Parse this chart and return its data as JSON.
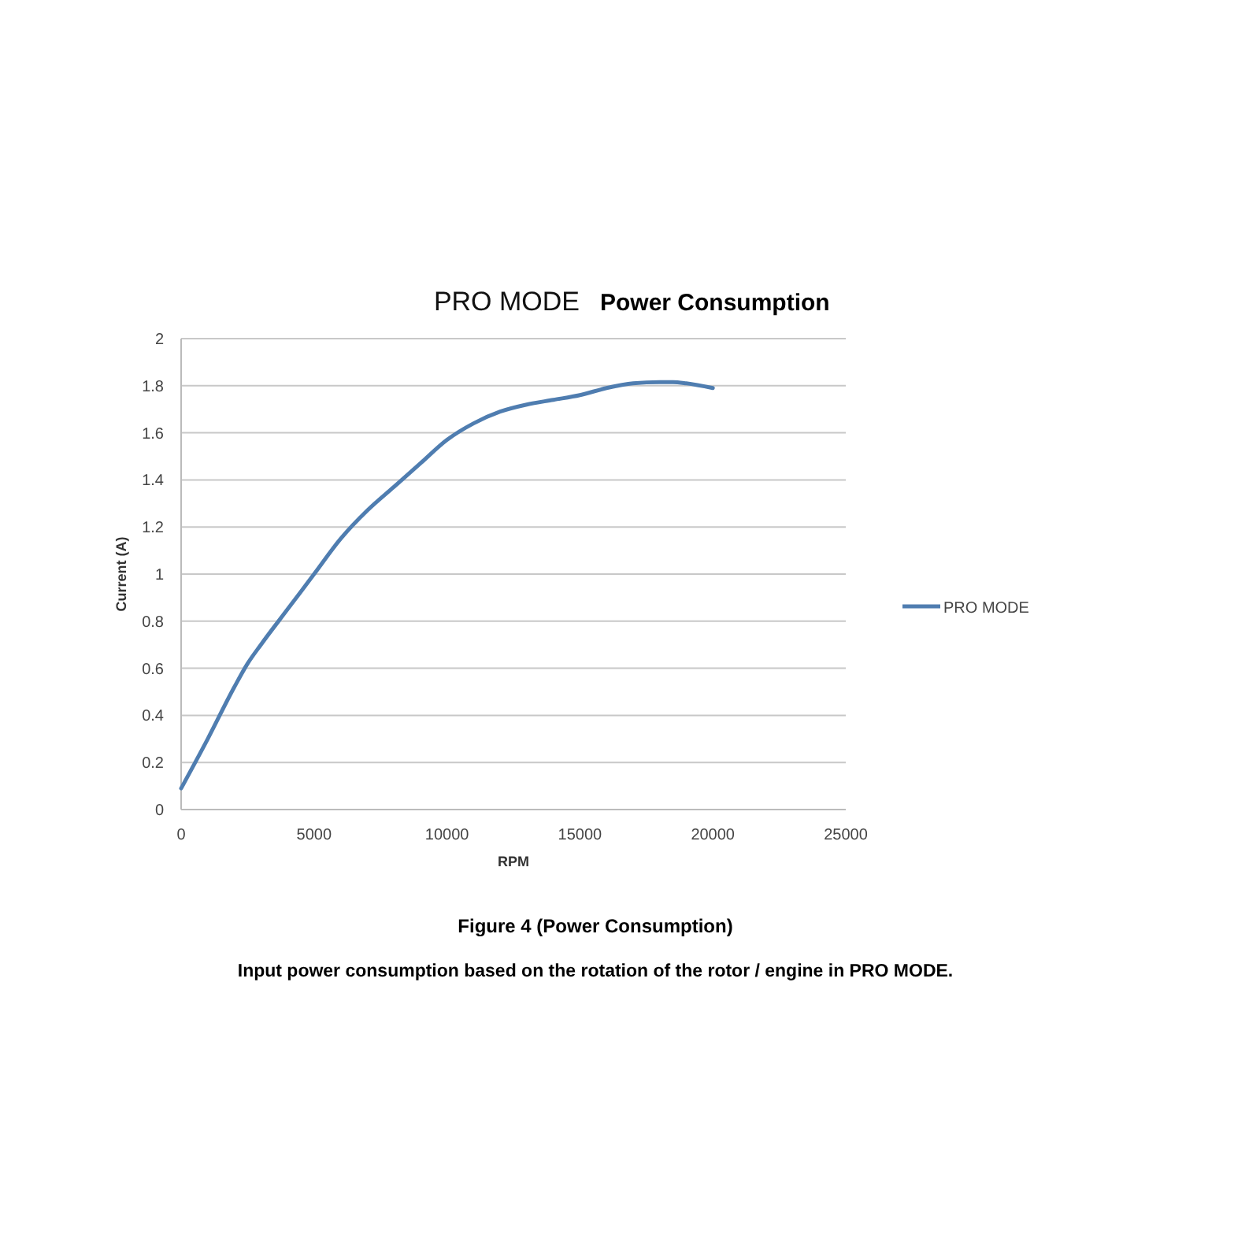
{
  "chart_data": {
    "type": "line",
    "title": "PRO MODE",
    "subtitle": "Power Consumption",
    "xlabel": "RPM",
    "ylabel": "Current (A)",
    "annotations": [
      "Figure 4 (Power Consumption)",
      "Input power consumption based on the rotation of the rotor / engine in PRO MODE."
    ],
    "x": [
      0,
      1000,
      2000,
      2500,
      3000,
      4000,
      5000,
      6000,
      7000,
      8000,
      9000,
      10000,
      11000,
      12000,
      13000,
      14000,
      15000,
      16000,
      17000,
      18000,
      18500,
      19000,
      20000
    ],
    "series": [
      {
        "name": "PRO MODE",
        "color": "#4f7db0",
        "values": [
          0.09,
          0.3,
          0.52,
          0.62,
          0.7,
          0.85,
          1.0,
          1.15,
          1.27,
          1.37,
          1.47,
          1.57,
          1.64,
          1.69,
          1.72,
          1.74,
          1.76,
          1.79,
          1.81,
          1.815,
          1.815,
          1.81,
          1.79
        ]
      }
    ],
    "xlim": [
      0,
      25000
    ],
    "xticks": [
      0,
      5000,
      10000,
      15000,
      20000,
      25000
    ],
    "ylim": [
      0,
      2
    ],
    "yticks": [
      0,
      {
        "value": 0.2,
        "label": "0.2"
      },
      {
        "value": 0.4,
        "label": "0.4"
      },
      {
        "value": 0.6,
        "label": "0.6"
      },
      {
        "value": 0.8,
        "label": "0.8"
      },
      1,
      {
        "value": 1.2,
        "label": "1.2"
      },
      {
        "value": 1.4,
        "label": "1.4"
      },
      {
        "value": 1.6,
        "label": "1.6"
      },
      {
        "value": 1.8,
        "label": "1.8"
      },
      2
    ],
    "grid": "y",
    "legend": "right",
    "marker": "none",
    "line_style": "solid"
  }
}
